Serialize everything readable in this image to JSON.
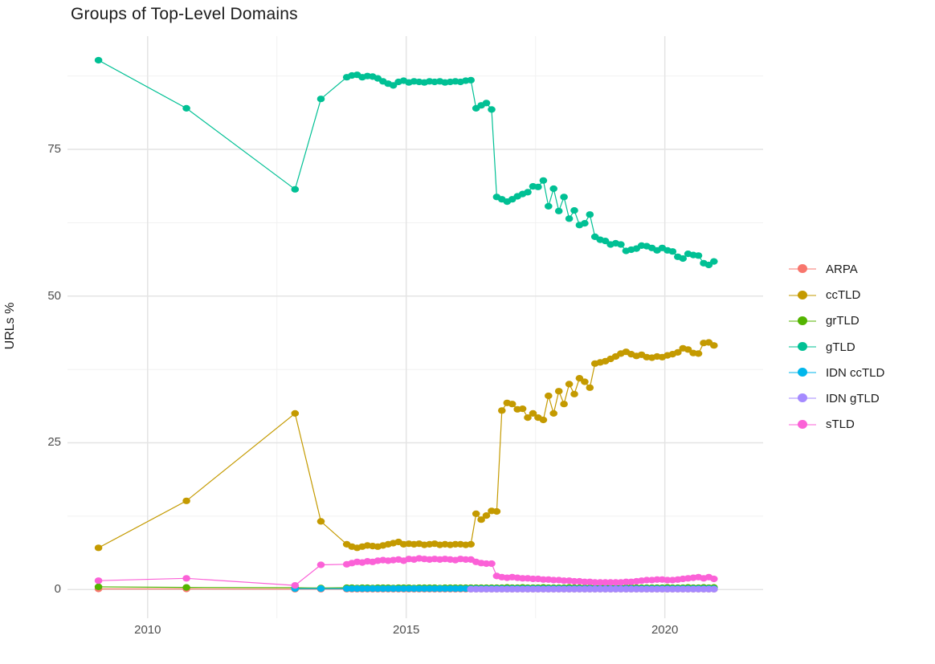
{
  "chart_data": {
    "type": "line",
    "title": "Groups of Top-Level Domains",
    "xlabel": "",
    "ylabel": "URLs %",
    "grid": true,
    "legend_position": "right",
    "xlim": [
      2008.45,
      2021.9
    ],
    "ylim": [
      -4.9,
      94.3
    ],
    "x_ticks": [
      {
        "label": "2010",
        "value": 2010
      },
      {
        "label": "2015",
        "value": 2015
      },
      {
        "label": "2020",
        "value": 2020
      }
    ],
    "y_ticks": [
      {
        "label": "0",
        "value": 0
      },
      {
        "label": "25",
        "value": 25
      },
      {
        "label": "50",
        "value": 50
      },
      {
        "label": "75",
        "value": 75
      }
    ],
    "x_minor_gridlines": [
      2012.5,
      2017.5
    ],
    "y_minor_gridlines": [
      12.5,
      37.5,
      62.5,
      87.5
    ],
    "x": [
      2009.05,
      2010.75,
      2012.85,
      2013.35,
      2013.85,
      2013.95,
      2014.05,
      2014.15,
      2014.25,
      2014.35,
      2014.45,
      2014.55,
      2014.65,
      2014.75,
      2014.85,
      2014.95,
      2015.05,
      2015.15,
      2015.25,
      2015.35,
      2015.45,
      2015.55,
      2015.65,
      2015.75,
      2015.85,
      2015.95,
      2016.05,
      2016.15,
      2016.25,
      2016.35,
      2016.45,
      2016.55,
      2016.65,
      2016.75,
      2016.85,
      2016.95,
      2017.05,
      2017.15,
      2017.25,
      2017.35,
      2017.45,
      2017.55,
      2017.65,
      2017.75,
      2017.85,
      2017.95,
      2018.05,
      2018.15,
      2018.25,
      2018.35,
      2018.45,
      2018.55,
      2018.65,
      2018.75,
      2018.85,
      2018.95,
      2019.05,
      2019.15,
      2019.25,
      2019.35,
      2019.45,
      2019.55,
      2019.65,
      2019.75,
      2019.85,
      2019.95,
      2020.05,
      2020.15,
      2020.25,
      2020.35,
      2020.45,
      2020.55,
      2020.65,
      2020.75,
      2020.85,
      2020.95
    ],
    "series": [
      {
        "name": "ARPA",
        "color": "#F8766D",
        "values": [
          0.1,
          0.1,
          0.05,
          0.05,
          0.05,
          0.05,
          0.05,
          0.05,
          0.05,
          0.05,
          0.05,
          0.05,
          0.05,
          0.05,
          0.05,
          0.05,
          0.05,
          0.05,
          0.05,
          0.05,
          0.05,
          0.05,
          0.05,
          0.05,
          0.05,
          0.05,
          0.05,
          0.05,
          0.05,
          0.05,
          0.05,
          0.05,
          0.05,
          0.05,
          0.05,
          0.05,
          0.05,
          0.05,
          0.05,
          0.05,
          0.05,
          0.05,
          0.05,
          0.05,
          0.05,
          0.05,
          0.05,
          0.05,
          0.05,
          0.05,
          0.05,
          0.05,
          0.05,
          0.05,
          0.05,
          0.05,
          0.05,
          0.05,
          0.05,
          0.05,
          0.05,
          0.05,
          0.05,
          0.05,
          0.05,
          0.05,
          0.05,
          0.05,
          0.05,
          0.05,
          0.05,
          0.05,
          0.05,
          0.05,
          0.05,
          0.05
        ]
      },
      {
        "name": "ccTLD",
        "color": "#C49A00",
        "values": [
          7.1,
          15.1,
          30.0,
          11.6,
          7.7,
          7.3,
          7.1,
          7.3,
          7.5,
          7.4,
          7.3,
          7.5,
          7.7,
          7.9,
          8.1,
          7.7,
          7.8,
          7.7,
          7.8,
          7.6,
          7.7,
          7.8,
          7.6,
          7.7,
          7.6,
          7.7,
          7.7,
          7.6,
          7.7,
          12.9,
          11.9,
          12.6,
          13.4,
          13.3,
          30.5,
          31.8,
          31.6,
          30.7,
          30.8,
          29.3,
          30.0,
          29.3,
          28.9,
          33.0,
          30.0,
          33.8,
          31.6,
          35.0,
          33.3,
          36.0,
          35.4,
          34.4,
          38.5,
          38.7,
          38.9,
          39.3,
          39.7,
          40.2,
          40.5,
          40.1,
          39.8,
          40.0,
          39.6,
          39.5,
          39.7,
          39.6,
          39.9,
          40.1,
          40.4,
          41.1,
          40.9,
          40.3,
          40.2,
          42.0,
          42.1,
          41.6
        ]
      },
      {
        "name": "grTLD",
        "color": "#53B400",
        "values": [
          0.45,
          0.35,
          0.3,
          0.25,
          0.3,
          0.3,
          0.25,
          0.3,
          0.3,
          0.25,
          0.3,
          0.3,
          0.3,
          0.25,
          0.3,
          0.3,
          0.3,
          0.25,
          0.3,
          0.3,
          0.3,
          0.3,
          0.25,
          0.3,
          0.3,
          0.3,
          0.3,
          0.3,
          0.3,
          0.3,
          0.3,
          0.3,
          0.3,
          0.3,
          0.3,
          0.35,
          0.3,
          0.3,
          0.35,
          0.3,
          0.3,
          0.3,
          0.35,
          0.3,
          0.3,
          0.3,
          0.3,
          0.35,
          0.3,
          0.3,
          0.3,
          0.3,
          0.3,
          0.3,
          0.35,
          0.3,
          0.3,
          0.3,
          0.3,
          0.35,
          0.3,
          0.3,
          0.3,
          0.3,
          0.3,
          0.3,
          0.35,
          0.3,
          0.3,
          0.3,
          0.35,
          0.3,
          0.3,
          0.35,
          0.3,
          0.35
        ]
      },
      {
        "name": "gTLD",
        "color": "#00C094",
        "values": [
          90.2,
          82.0,
          68.2,
          83.6,
          87.3,
          87.6,
          87.7,
          87.3,
          87.5,
          87.4,
          87.1,
          86.6,
          86.2,
          85.9,
          86.5,
          86.7,
          86.4,
          86.6,
          86.5,
          86.4,
          86.6,
          86.5,
          86.6,
          86.4,
          86.5,
          86.6,
          86.5,
          86.7,
          86.8,
          82.0,
          82.5,
          82.9,
          81.8,
          66.9,
          66.5,
          66.1,
          66.5,
          67.0,
          67.4,
          67.7,
          68.7,
          68.6,
          69.7,
          65.3,
          68.3,
          64.5,
          66.9,
          63.2,
          64.6,
          62.1,
          62.4,
          63.9,
          60.1,
          59.6,
          59.4,
          58.8,
          59.0,
          58.8,
          57.7,
          57.9,
          58.1,
          58.6,
          58.5,
          58.2,
          57.8,
          58.2,
          57.8,
          57.6,
          56.7,
          56.4,
          57.2,
          57.0,
          56.9,
          55.6,
          55.3,
          55.9
        ]
      },
      {
        "name": "IDN ccTLD",
        "color": "#00B6EB",
        "values": [
          null,
          null,
          0.15,
          0.15,
          0.15,
          0.15,
          0.15,
          0.15,
          0.15,
          0.15,
          0.15,
          0.15,
          0.15,
          0.15,
          0.15,
          0.15,
          0.15,
          0.15,
          0.15,
          0.15,
          0.15,
          0.15,
          0.15,
          0.15,
          0.15,
          0.15,
          0.15,
          0.15,
          0.15,
          0.15,
          0.15,
          0.15,
          0.15,
          0.15,
          0.15,
          0.15,
          0.15,
          0.15,
          0.15,
          0.15,
          0.15,
          0.15,
          0.15,
          0.15,
          0.15,
          0.15,
          0.15,
          0.15,
          0.15,
          0.15,
          0.15,
          0.15,
          0.15,
          0.15,
          0.15,
          0.15,
          0.15,
          0.15,
          0.15,
          0.15,
          0.15,
          0.15,
          0.15,
          0.15,
          0.15,
          0.15,
          0.15,
          0.15,
          0.15,
          0.15,
          0.15,
          0.15,
          0.15,
          0.15,
          0.15,
          0.15
        ]
      },
      {
        "name": "IDN gTLD",
        "color": "#A58AFF",
        "values": [
          null,
          null,
          null,
          null,
          null,
          null,
          null,
          null,
          null,
          null,
          null,
          null,
          null,
          null,
          null,
          null,
          null,
          null,
          null,
          null,
          null,
          null,
          null,
          null,
          null,
          null,
          null,
          null,
          0.05,
          0.05,
          0.05,
          0.05,
          0.05,
          0.05,
          0.05,
          0.05,
          0.05,
          0.05,
          0.05,
          0.05,
          0.05,
          0.05,
          0.05,
          0.05,
          0.05,
          0.05,
          0.05,
          0.05,
          0.05,
          0.05,
          0.05,
          0.05,
          0.05,
          0.05,
          0.05,
          0.05,
          0.05,
          0.05,
          0.05,
          0.05,
          0.05,
          0.05,
          0.05,
          0.05,
          0.05,
          0.05,
          0.05,
          0.05,
          0.05,
          0.05,
          0.05,
          0.05,
          0.05,
          0.05,
          0.05,
          0.05
        ]
      },
      {
        "name": "sTLD",
        "color": "#FB61D7",
        "values": [
          1.5,
          1.9,
          0.7,
          4.2,
          4.3,
          4.5,
          4.7,
          4.6,
          4.8,
          4.7,
          4.9,
          5.0,
          4.9,
          5.0,
          5.1,
          4.9,
          5.2,
          5.1,
          5.3,
          5.2,
          5.1,
          5.2,
          5.1,
          5.2,
          5.1,
          5.0,
          5.2,
          5.1,
          5.1,
          4.7,
          4.5,
          4.4,
          4.4,
          2.3,
          2.1,
          2.0,
          2.1,
          2.0,
          1.9,
          1.9,
          1.8,
          1.8,
          1.7,
          1.7,
          1.6,
          1.6,
          1.5,
          1.5,
          1.4,
          1.4,
          1.3,
          1.3,
          1.2,
          1.2,
          1.2,
          1.2,
          1.2,
          1.2,
          1.3,
          1.3,
          1.4,
          1.5,
          1.6,
          1.6,
          1.7,
          1.7,
          1.6,
          1.6,
          1.7,
          1.8,
          1.9,
          2.0,
          2.1,
          1.9,
          2.1,
          1.8
        ]
      }
    ]
  },
  "style": {
    "major_grid_color": "#e4e4e4",
    "minor_grid_color": "#f1f1f1",
    "tick_text_color": "#4d4d4d",
    "title_text_color": "#1b1b1b"
  }
}
